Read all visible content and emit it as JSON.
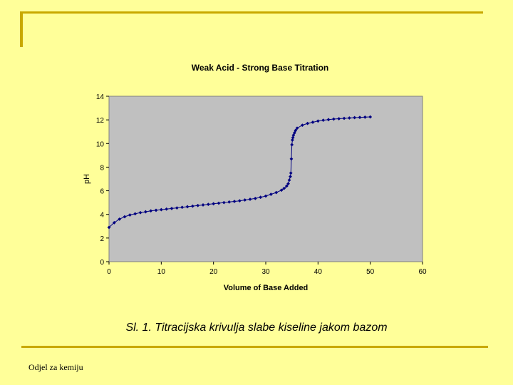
{
  "caption": "Sl. 1. Titracijska krivulja slabe kiseline jakom bazom",
  "footer": "Odjel za kemiju",
  "colors": {
    "background": "#ffff99",
    "plot_bg": "#c0c0c0",
    "series": "#000080",
    "accent": "#c8a800"
  },
  "chart_data": {
    "type": "line",
    "title": "Weak Acid - Strong Base Titration",
    "xlabel": "Volume of Base Added",
    "ylabel": "pH",
    "xlim": [
      0,
      60
    ],
    "ylim": [
      0,
      14
    ],
    "xticks": [
      0,
      10,
      20,
      30,
      40,
      50,
      60
    ],
    "yticks": [
      0,
      2,
      4,
      6,
      8,
      10,
      12,
      14
    ],
    "grid": false,
    "legend": "none",
    "series": [
      {
        "x": [
          0,
          1,
          2,
          3,
          4,
          5,
          6,
          7,
          8,
          9,
          10,
          11,
          12,
          13,
          14,
          15,
          16,
          17,
          18,
          19,
          20,
          21,
          22,
          23,
          24,
          25,
          26,
          27,
          28,
          29,
          30,
          31,
          32,
          33,
          33.5,
          34,
          34.3,
          34.5,
          34.7,
          34.8,
          34.9,
          35,
          35.1,
          35.2,
          35.3,
          35.5,
          35.7,
          36,
          37,
          38,
          39,
          40,
          41,
          42,
          43,
          44,
          45,
          46,
          47,
          48,
          49,
          50
        ],
        "y": [
          2.9,
          3.3,
          3.6,
          3.8,
          3.95,
          4.05,
          4.15,
          4.22,
          4.3,
          4.35,
          4.4,
          4.45,
          4.5,
          4.55,
          4.6,
          4.65,
          4.7,
          4.75,
          4.8,
          4.85,
          4.9,
          4.95,
          5.0,
          5.05,
          5.1,
          5.15,
          5.22,
          5.28,
          5.35,
          5.45,
          5.55,
          5.7,
          5.85,
          6.05,
          6.2,
          6.4,
          6.6,
          6.9,
          7.2,
          7.5,
          8.7,
          9.9,
          10.3,
          10.5,
          10.7,
          10.9,
          11.1,
          11.3,
          11.55,
          11.7,
          11.8,
          11.9,
          11.97,
          12.02,
          12.07,
          12.1,
          12.13,
          12.16,
          12.19,
          12.21,
          12.23,
          12.25
        ]
      }
    ]
  }
}
